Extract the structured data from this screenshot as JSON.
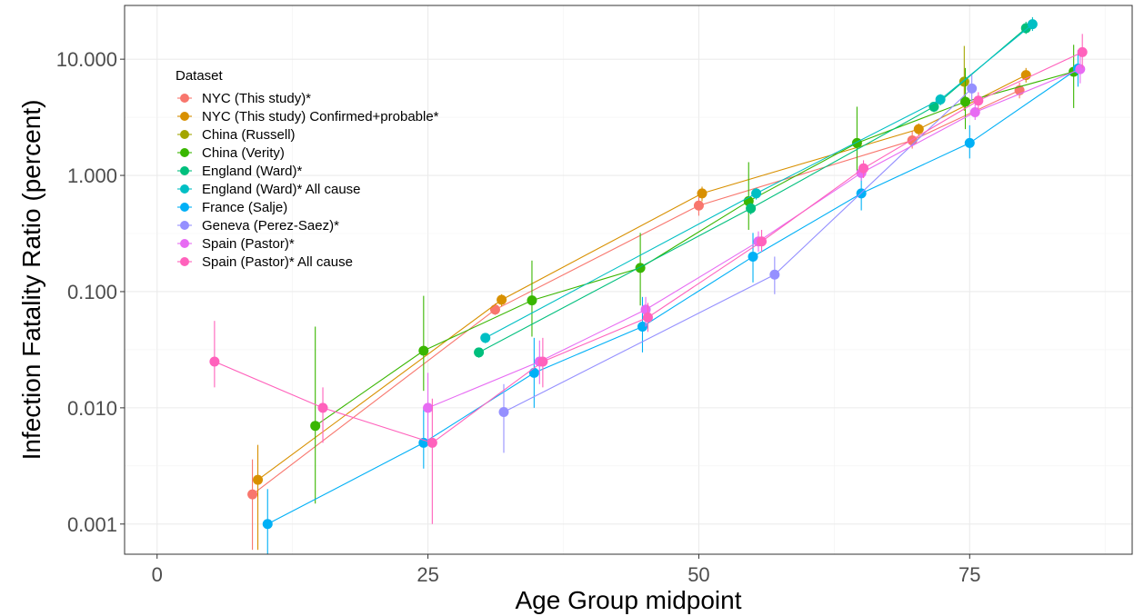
{
  "chart_data": {
    "type": "scatter",
    "xlabel": "Age Group midpoint",
    "ylabel": "Infection Fatality Ratio (percent)",
    "xlim": [
      -3,
      90
    ],
    "ylim": [
      0.00055,
      29
    ],
    "y_scale": "log10",
    "x_ticks": [
      0,
      25,
      50,
      75
    ],
    "x_tick_labels": [
      "0",
      "25",
      "50",
      "75"
    ],
    "y_ticks": [
      0.001,
      0.01,
      0.1,
      1,
      10
    ],
    "y_tick_labels": [
      "0.001",
      "0.010",
      "0.100",
      "1.000",
      "10.000"
    ],
    "grid": true,
    "legend": {
      "title": "Dataset",
      "position": "top-left"
    },
    "series": [
      {
        "name": "NYC (This study)*",
        "color": "#F8766D",
        "points": [
          {
            "x": 8.8,
            "y": 0.0018,
            "lo": 0.0006,
            "hi": 0.0036
          },
          {
            "x": 31.2,
            "y": 0.07,
            "lo": 0.063,
            "hi": 0.079
          },
          {
            "x": 50,
            "y": 0.55,
            "lo": 0.45,
            "hi": 0.66
          },
          {
            "x": 69.7,
            "y": 2.0,
            "lo": 1.7,
            "hi": 2.4
          },
          {
            "x": 79.6,
            "y": 5.4,
            "lo": 4.6,
            "hi": 6.3
          }
        ]
      },
      {
        "name": "NYC (This study) Confirmed+probable*",
        "color": "#D89000",
        "points": [
          {
            "x": 9.3,
            "y": 0.0024,
            "lo": 0.0006,
            "hi": 0.0048
          },
          {
            "x": 31.8,
            "y": 0.085,
            "lo": 0.075,
            "hi": 0.095
          },
          {
            "x": 50.3,
            "y": 0.7,
            "lo": 0.6,
            "hi": 0.8
          },
          {
            "x": 70.3,
            "y": 2.5,
            "lo": 2.2,
            "hi": 2.8
          },
          {
            "x": 80.2,
            "y": 7.3,
            "lo": 6.3,
            "hi": 8.4
          }
        ]
      },
      {
        "name": "China (Russell)",
        "color": "#A3A500",
        "points": [
          {
            "x": 74.5,
            "y": 6.4,
            "lo": 3.6,
            "hi": 13
          }
        ]
      },
      {
        "name": "China (Verity)",
        "color": "#39B600",
        "points": [
          {
            "x": 14.6,
            "y": 0.007,
            "lo": 0.0015,
            "hi": 0.05
          },
          {
            "x": 24.6,
            "y": 0.031,
            "lo": 0.014,
            "hi": 0.092
          },
          {
            "x": 34.6,
            "y": 0.084,
            "lo": 0.041,
            "hi": 0.185
          },
          {
            "x": 44.6,
            "y": 0.16,
            "lo": 0.076,
            "hi": 0.32
          },
          {
            "x": 54.6,
            "y": 0.6,
            "lo": 0.34,
            "hi": 1.3
          },
          {
            "x": 64.6,
            "y": 1.9,
            "lo": 1.1,
            "hi": 3.9
          },
          {
            "x": 74.6,
            "y": 4.3,
            "lo": 2.5,
            "hi": 8.4
          },
          {
            "x": 84.6,
            "y": 7.8,
            "lo": 3.8,
            "hi": 13.3
          }
        ]
      },
      {
        "name": "England (Ward)*",
        "color": "#00BF7D",
        "points": [
          {
            "x": 29.7,
            "y": 0.03,
            "lo": 0.027,
            "hi": 0.033
          },
          {
            "x": 54.8,
            "y": 0.52,
            "lo": 0.46,
            "hi": 0.58
          },
          {
            "x": 71.7,
            "y": 3.9,
            "lo": 3.5,
            "hi": 4.3
          },
          {
            "x": 80.2,
            "y": 18.5,
            "lo": 16.5,
            "hi": 21
          }
        ]
      },
      {
        "name": "England (Ward)* All cause",
        "color": "#00BFC4",
        "points": [
          {
            "x": 30.3,
            "y": 0.04,
            "lo": 0.036,
            "hi": 0.044
          },
          {
            "x": 55.3,
            "y": 0.7,
            "lo": 0.62,
            "hi": 0.78
          },
          {
            "x": 72.3,
            "y": 4.5,
            "lo": 4.0,
            "hi": 5.0
          },
          {
            "x": 80.8,
            "y": 20,
            "lo": 17.5,
            "hi": 23
          }
        ]
      },
      {
        "name": "France (Salje)",
        "color": "#00B0F6",
        "points": [
          {
            "x": 10.2,
            "y": 0.001,
            "lo": 0.0004,
            "hi": 0.002
          },
          {
            "x": 24.6,
            "y": 0.005,
            "lo": 0.003,
            "hi": 0.01
          },
          {
            "x": 34.8,
            "y": 0.02,
            "lo": 0.01,
            "hi": 0.04
          },
          {
            "x": 44.8,
            "y": 0.05,
            "lo": 0.03,
            "hi": 0.09
          },
          {
            "x": 55.0,
            "y": 0.2,
            "lo": 0.12,
            "hi": 0.32
          },
          {
            "x": 65.0,
            "y": 0.7,
            "lo": 0.5,
            "hi": 1.0
          },
          {
            "x": 75.0,
            "y": 1.9,
            "lo": 1.4,
            "hi": 2.7
          },
          {
            "x": 85.0,
            "y": 8.3,
            "lo": 5.8,
            "hi": 12
          }
        ]
      },
      {
        "name": "Geneva (Perez-Saez)*",
        "color": "#9590FF",
        "points": [
          {
            "x": 32,
            "y": 0.0092,
            "lo": 0.0041,
            "hi": 0.016
          },
          {
            "x": 57,
            "y": 0.14,
            "lo": 0.095,
            "hi": 0.2
          },
          {
            "x": 75.2,
            "y": 5.6,
            "lo": 4.3,
            "hi": 7.4
          }
        ]
      },
      {
        "name": "Spain (Pastor)*",
        "color": "#E76BF3",
        "points": [
          {
            "x": 25,
            "y": 0.01,
            "lo": 0.005,
            "hi": 0.02
          },
          {
            "x": 35.3,
            "y": 0.025,
            "lo": 0.016,
            "hi": 0.038
          },
          {
            "x": 45.1,
            "y": 0.07,
            "lo": 0.05,
            "hi": 0.09
          },
          {
            "x": 55.5,
            "y": 0.27,
            "lo": 0.22,
            "hi": 0.33
          },
          {
            "x": 65.0,
            "y": 1.05,
            "lo": 0.9,
            "hi": 1.25
          },
          {
            "x": 75.5,
            "y": 3.5,
            "lo": 3.0,
            "hi": 4.1
          },
          {
            "x": 85.2,
            "y": 8.2,
            "lo": 6.2,
            "hi": 11
          }
        ]
      },
      {
        "name": "Spain (Pastor)* All cause",
        "color": "#FF62BC",
        "points": [
          {
            "x": 5.3,
            "y": 0.025,
            "lo": 0.015,
            "hi": 0.056
          },
          {
            "x": 15.3,
            "y": 0.01,
            "lo": 0.005,
            "hi": 0.015
          },
          {
            "x": 25.4,
            "y": 0.005,
            "lo": 0.001,
            "hi": 0.012
          },
          {
            "x": 35.6,
            "y": 0.025,
            "lo": 0.015,
            "hi": 0.04
          },
          {
            "x": 45.3,
            "y": 0.06,
            "lo": 0.045,
            "hi": 0.08
          },
          {
            "x": 55.8,
            "y": 0.27,
            "lo": 0.22,
            "hi": 0.34
          },
          {
            "x": 65.2,
            "y": 1.15,
            "lo": 0.95,
            "hi": 1.35
          },
          {
            "x": 75.8,
            "y": 4.4,
            "lo": 3.7,
            "hi": 5.2
          },
          {
            "x": 85.4,
            "y": 11.5,
            "lo": 8.4,
            "hi": 16.5
          }
        ]
      }
    ]
  }
}
